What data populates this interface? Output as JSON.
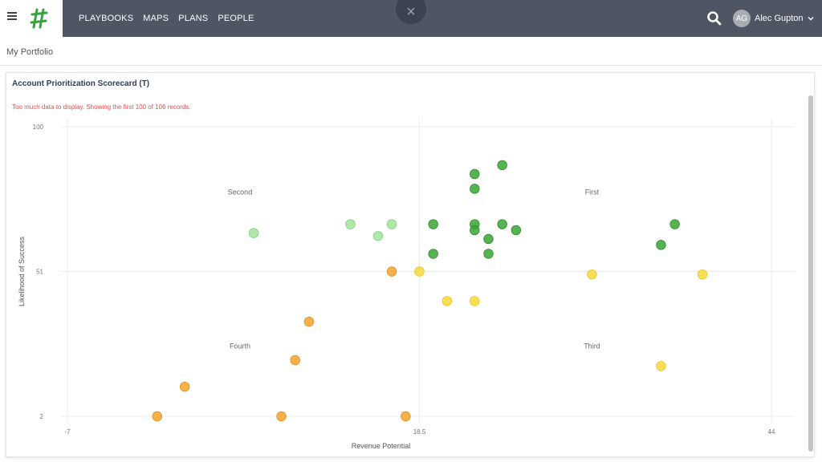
{
  "nav": {
    "items": [
      "PLAYBOOKS",
      "MAPS",
      "PLANS",
      "PEOPLE"
    ]
  },
  "overlay": {
    "close_symbol": "×"
  },
  "user": {
    "initials": "AG",
    "name": "Alec Gupton"
  },
  "breadcrumb": {
    "label": "My Portfolio"
  },
  "card": {
    "title": "Account Prioritization Scorecard (T)",
    "warning": "Too much data to display. Showing the first 100 of 106 records."
  },
  "icons": {
    "menu": "hamburger-icon",
    "logo": "logo-icon",
    "close": "close-icon",
    "search": "search-icon",
    "chevron": "chevron-down-icon"
  },
  "colors": {
    "topbar": "#4e5563",
    "first": "#3aa435",
    "second": "#a2e39c",
    "third": "#f8d83a",
    "fourth": "#f5a32c",
    "warning": "#d9534f"
  },
  "chart_data": {
    "type": "scatter",
    "xlabel": "Revenue Potential",
    "ylabel": "Likelihood of Success",
    "xlim": [
      -7,
      44
    ],
    "ylim": [
      2,
      100
    ],
    "x_ticks": [
      "-7",
      "18.5",
      "44"
    ],
    "y_ticks": [
      "100",
      "51",
      "2"
    ],
    "grid": true,
    "quadrants": [
      {
        "label": "Second",
        "x": 5.5,
        "y": 77
      },
      {
        "label": "First",
        "x": 31,
        "y": 77
      },
      {
        "label": "Fourth",
        "x": 5.5,
        "y": 25
      },
      {
        "label": "Third",
        "x": 31,
        "y": 25
      }
    ],
    "points": [
      {
        "x": 22.5,
        "y": 84,
        "group": "first"
      },
      {
        "x": 24.5,
        "y": 87,
        "group": "first"
      },
      {
        "x": 22.5,
        "y": 79,
        "group": "first"
      },
      {
        "x": 19.5,
        "y": 67,
        "group": "first"
      },
      {
        "x": 22.5,
        "y": 67,
        "group": "first"
      },
      {
        "x": 24.5,
        "y": 67,
        "group": "first"
      },
      {
        "x": 22.5,
        "y": 65,
        "group": "first"
      },
      {
        "x": 25.5,
        "y": 65,
        "group": "first"
      },
      {
        "x": 23.5,
        "y": 62,
        "group": "first"
      },
      {
        "x": 19.5,
        "y": 57,
        "group": "first"
      },
      {
        "x": 23.5,
        "y": 57,
        "group": "first"
      },
      {
        "x": 37,
        "y": 67,
        "group": "first"
      },
      {
        "x": 36,
        "y": 60,
        "group": "first"
      },
      {
        "x": 6.5,
        "y": 64,
        "group": "second"
      },
      {
        "x": 13.5,
        "y": 67,
        "group": "second"
      },
      {
        "x": 15.5,
        "y": 63,
        "group": "second"
      },
      {
        "x": 16.5,
        "y": 67,
        "group": "second"
      },
      {
        "x": 18.5,
        "y": 51,
        "group": "third"
      },
      {
        "x": 20.5,
        "y": 41,
        "group": "third"
      },
      {
        "x": 22.5,
        "y": 41,
        "group": "third"
      },
      {
        "x": 31,
        "y": 50,
        "group": "third"
      },
      {
        "x": 39,
        "y": 50,
        "group": "third"
      },
      {
        "x": 36,
        "y": 19,
        "group": "third"
      },
      {
        "x": 16.5,
        "y": 51,
        "group": "fourth"
      },
      {
        "x": 10.5,
        "y": 34,
        "group": "fourth"
      },
      {
        "x": 9.5,
        "y": 21,
        "group": "fourth"
      },
      {
        "x": 1.5,
        "y": 12,
        "group": "fourth"
      },
      {
        "x": -0.5,
        "y": 2,
        "group": "fourth"
      },
      {
        "x": 8.5,
        "y": 2,
        "group": "fourth"
      },
      {
        "x": 17.5,
        "y": 2,
        "group": "fourth"
      }
    ]
  }
}
